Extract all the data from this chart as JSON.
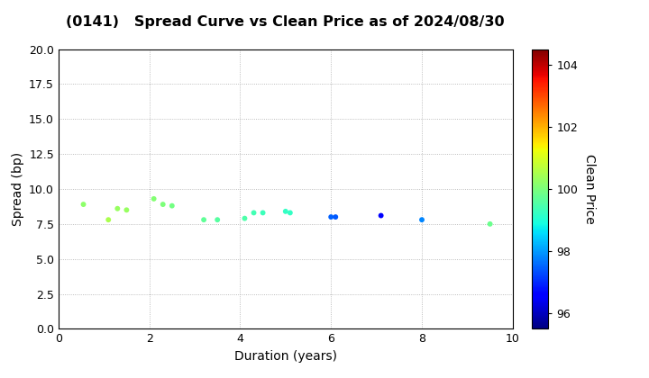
{
  "title": "(0141)   Spread Curve vs Clean Price as of 2024/08/30",
  "xlabel": "Duration (years)",
  "ylabel": "Spread (bp)",
  "colorbar_label": "Clean Price",
  "xlim": [
    0,
    10
  ],
  "ylim": [
    0.0,
    20.0
  ],
  "yticks": [
    0.0,
    2.5,
    5.0,
    7.5,
    10.0,
    12.5,
    15.0,
    17.5,
    20.0
  ],
  "xticks": [
    0,
    2,
    4,
    6,
    8,
    10
  ],
  "colorbar_min": 95.5,
  "colorbar_max": 104.5,
  "colorbar_ticks": [
    96,
    98,
    100,
    102,
    104
  ],
  "points": [
    {
      "duration": 0.55,
      "spread": 8.9,
      "price": 100.2
    },
    {
      "duration": 1.1,
      "spread": 7.8,
      "price": 100.5
    },
    {
      "duration": 1.3,
      "spread": 8.6,
      "price": 100.3
    },
    {
      "duration": 1.5,
      "spread": 8.5,
      "price": 100.3
    },
    {
      "duration": 2.1,
      "spread": 9.3,
      "price": 100.1
    },
    {
      "duration": 2.3,
      "spread": 8.9,
      "price": 100.0
    },
    {
      "duration": 2.5,
      "spread": 8.8,
      "price": 99.9
    },
    {
      "duration": 3.2,
      "spread": 7.8,
      "price": 99.7
    },
    {
      "duration": 3.5,
      "spread": 7.8,
      "price": 99.6
    },
    {
      "duration": 4.1,
      "spread": 7.9,
      "price": 99.5
    },
    {
      "duration": 4.3,
      "spread": 8.3,
      "price": 99.4
    },
    {
      "duration": 4.5,
      "spread": 8.3,
      "price": 99.3
    },
    {
      "duration": 5.0,
      "spread": 8.4,
      "price": 99.2
    },
    {
      "duration": 5.1,
      "spread": 8.3,
      "price": 99.2
    },
    {
      "duration": 6.0,
      "spread": 8.0,
      "price": 97.5
    },
    {
      "duration": 6.1,
      "spread": 8.0,
      "price": 97.4
    },
    {
      "duration": 7.1,
      "spread": 8.1,
      "price": 96.5
    },
    {
      "duration": 8.0,
      "spread": 7.8,
      "price": 97.8
    },
    {
      "duration": 9.5,
      "spread": 7.5,
      "price": 99.8
    }
  ],
  "marker_size": 18,
  "background_color": "#ffffff",
  "grid_color": "#aaaaaa",
  "title_fontsize": 11.5,
  "axis_fontsize": 10,
  "tick_fontsize": 9
}
